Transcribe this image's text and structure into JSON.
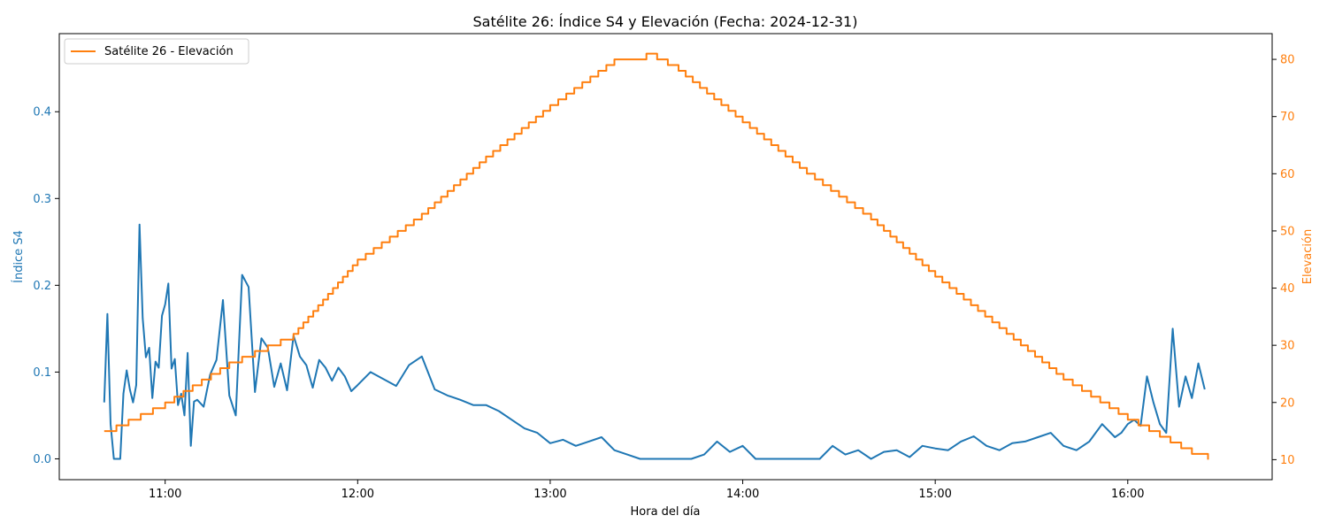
{
  "chart_data": {
    "type": "line",
    "title": "Satélite 26: Índice S4 y Elevación (Fecha: 2024-12-31)",
    "xlabel": "Hora del día",
    "ylabel_left": "Índice S4",
    "ylabel_right": "Elevación",
    "x_ticks": [
      "11:00",
      "12:00",
      "13:00",
      "14:00",
      "15:00",
      "16:00"
    ],
    "y_left_ticks": [
      "0.0",
      "0.1",
      "0.2",
      "0.3",
      "0.4"
    ],
    "y_right_ticks": [
      "10",
      "20",
      "30",
      "40",
      "50",
      "60",
      "70",
      "80"
    ],
    "xlim": [
      "10:27",
      "16:45"
    ],
    "ylim_left": [
      -0.024,
      0.49
    ],
    "ylim_right": [
      6.5,
      84.5
    ],
    "legend": {
      "placement": "top-left",
      "entries": [
        "Satélite 26 - Elevación"
      ]
    },
    "grid": false,
    "colors": {
      "s4": "#1f77b4",
      "elevation": "#ff7f0e"
    },
    "series": [
      {
        "axis": "left",
        "color": "#1f77b4",
        "x": [
          "10:41",
          "10:42",
          "10:43",
          "10:44",
          "10:45",
          "10:46",
          "10:47",
          "10:48",
          "10:49",
          "10:50",
          "10:51",
          "10:52",
          "10:53",
          "10:54",
          "10:55",
          "10:56",
          "10:57",
          "10:58",
          "10:59",
          "11:00",
          "11:01",
          "11:02",
          "11:03",
          "11:04",
          "11:05",
          "11:06",
          "11:07",
          "11:08",
          "11:09",
          "11:10",
          "11:12",
          "11:14",
          "11:16",
          "11:18",
          "11:20",
          "11:22",
          "11:24",
          "11:26",
          "11:28",
          "11:30",
          "11:32",
          "11:34",
          "11:36",
          "11:38",
          "11:40",
          "11:42",
          "11:44",
          "11:46",
          "11:48",
          "11:50",
          "11:52",
          "11:54",
          "11:56",
          "11:58",
          "12:00",
          "12:04",
          "12:08",
          "12:12",
          "12:16",
          "12:20",
          "12:24",
          "12:28",
          "12:32",
          "12:36",
          "12:40",
          "12:44",
          "12:48",
          "12:52",
          "12:56",
          "13:00",
          "13:04",
          "13:08",
          "13:12",
          "13:16",
          "13:20",
          "13:24",
          "13:28",
          "13:32",
          "13:36",
          "13:40",
          "13:44",
          "13:48",
          "13:52",
          "13:56",
          "14:00",
          "14:04",
          "14:08",
          "14:12",
          "14:16",
          "14:20",
          "14:24",
          "14:28",
          "14:32",
          "14:36",
          "14:40",
          "14:44",
          "14:48",
          "14:52",
          "14:56",
          "15:00",
          "15:04",
          "15:08",
          "15:12",
          "15:16",
          "15:20",
          "15:24",
          "15:28",
          "15:32",
          "15:36",
          "15:40",
          "15:44",
          "15:48",
          "15:52",
          "15:56",
          "15:58",
          "16:00",
          "16:02",
          "16:04",
          "16:06",
          "16:08",
          "16:10",
          "16:12",
          "16:14",
          "16:16",
          "16:18",
          "16:20",
          "16:22",
          "16:24"
        ],
        "values": [
          0.065,
          0.167,
          0.04,
          0.0,
          0.0,
          0.0,
          0.075,
          0.102,
          0.08,
          0.065,
          0.085,
          0.27,
          0.162,
          0.117,
          0.128,
          0.07,
          0.112,
          0.105,
          0.165,
          0.178,
          0.202,
          0.104,
          0.115,
          0.062,
          0.075,
          0.05,
          0.122,
          0.015,
          0.066,
          0.068,
          0.06,
          0.097,
          0.114,
          0.183,
          0.073,
          0.05,
          0.212,
          0.198,
          0.077,
          0.139,
          0.128,
          0.083,
          0.11,
          0.079,
          0.142,
          0.118,
          0.108,
          0.082,
          0.114,
          0.105,
          0.09,
          0.105,
          0.095,
          0.078,
          0.085,
          0.1,
          0.092,
          0.084,
          0.108,
          0.118,
          0.08,
          0.073,
          0.068,
          0.062,
          0.062,
          0.055,
          0.045,
          0.035,
          0.03,
          0.018,
          0.022,
          0.015,
          0.02,
          0.025,
          0.01,
          0.005,
          0.0,
          0.0,
          0.0,
          0.0,
          0.0,
          0.005,
          0.02,
          0.008,
          0.015,
          0.0,
          0.0,
          0.0,
          0.0,
          0.0,
          0.0,
          0.015,
          0.005,
          0.01,
          0.0,
          0.008,
          0.01,
          0.002,
          0.015,
          0.012,
          0.01,
          0.02,
          0.026,
          0.015,
          0.01,
          0.018,
          0.02,
          0.025,
          0.03,
          0.015,
          0.01,
          0.02,
          0.04,
          0.025,
          0.03,
          0.04,
          0.045,
          0.038,
          0.095,
          0.065,
          0.04,
          0.03,
          0.15,
          0.06,
          0.095,
          0.07,
          0.11,
          0.08
        ]
      },
      {
        "name": "Satélite 26 - Elevación",
        "axis": "right",
        "color": "#ff7f0e",
        "x": [
          "10:41",
          "11:00",
          "11:20",
          "11:40",
          "12:00",
          "12:20",
          "12:40",
          "13:00",
          "13:20",
          "13:30",
          "13:40",
          "14:00",
          "14:20",
          "14:40",
          "15:00",
          "15:20",
          "15:40",
          "16:00",
          "16:20",
          "16:25"
        ],
        "values": [
          15,
          20,
          27,
          32,
          45,
          53,
          63,
          72,
          80,
          81,
          78,
          69,
          60,
          52,
          42,
          33,
          24,
          17,
          11,
          10
        ]
      }
    ]
  }
}
